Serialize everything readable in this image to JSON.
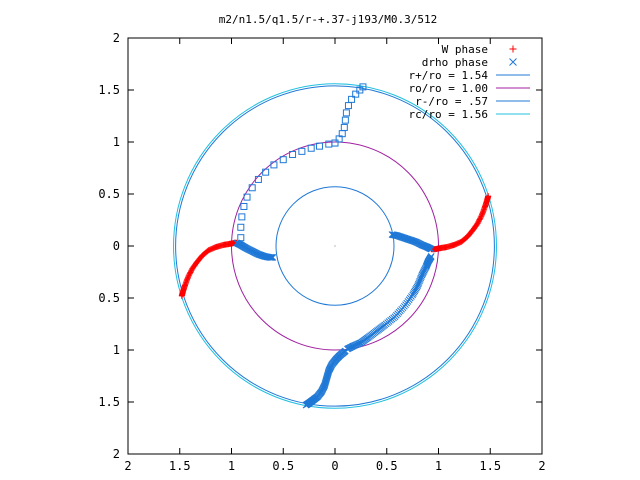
{
  "chart_data": {
    "type": "scatter",
    "title": "m2/n1.5/q1.5/r-+.37-j193/M0.3/512",
    "xlim": [
      -2,
      2
    ],
    "ylim": [
      -2,
      2
    ],
    "x_ticks": [
      -2,
      -1.5,
      -1,
      -0.5,
      0,
      0.5,
      1,
      1.5,
      2
    ],
    "y_ticks": [
      -2,
      -1.5,
      -1,
      -0.5,
      0,
      0.5,
      1,
      1.5,
      2
    ],
    "x_tick_labels": [
      "2",
      "1.5",
      "1",
      "0.5",
      "0",
      "0.5",
      "1",
      "1.5",
      "2"
    ],
    "y_tick_labels": [
      "2",
      "1.5",
      "1",
      "0.5",
      "0",
      "0.5",
      "1",
      "1.5",
      "2"
    ],
    "grid": false,
    "legend_position": "top-right",
    "series": [
      {
        "name": "W phase",
        "kind": "points",
        "marker": "plus",
        "color": "#ff0000",
        "segments": [
          {
            "x": [
              -1.48,
              -1.47,
              -1.45,
              -1.42,
              -1.38,
              -1.33,
              -1.28,
              -1.22,
              -1.15,
              -1.08,
              -1.02,
              -0.97,
              -0.95
            ],
            "y": [
              -0.48,
              -0.44,
              -0.38,
              -0.3,
              -0.22,
              -0.15,
              -0.09,
              -0.04,
              -0.01,
              0.01,
              0.02,
              0.03,
              0.03
            ]
          },
          {
            "x": [
              0.93,
              0.97,
              1.02,
              1.08,
              1.15,
              1.22,
              1.28,
              1.33,
              1.38,
              1.42,
              1.45,
              1.47,
              1.48
            ],
            "y": [
              -0.03,
              -0.03,
              -0.02,
              -0.01,
              0.01,
              0.04,
              0.09,
              0.15,
              0.22,
              0.3,
              0.38,
              0.44,
              0.48
            ]
          }
        ]
      },
      {
        "name": "drho phase",
        "kind": "points",
        "marker": "x",
        "color": "#1f78d6",
        "segments": [
          {
            "x": [
              -0.95,
              -0.91,
              -0.86,
              -0.8,
              -0.74,
              -0.68,
              -0.63,
              -0.6
            ],
            "y": [
              0.03,
              0.01,
              -0.02,
              -0.05,
              -0.08,
              -0.1,
              -0.11,
              -0.11
            ]
          },
          {
            "x": [
              0.55,
              0.6,
              0.66,
              0.72,
              0.78,
              0.84,
              0.89,
              0.93
            ],
            "y": [
              0.11,
              0.1,
              0.08,
              0.06,
              0.04,
              0.01,
              -0.01,
              -0.03
            ]
          },
          {
            "x": [
              0.93,
              0.9,
              0.88,
              0.84,
              0.8,
              0.75,
              0.67,
              0.58,
              0.48,
              0.4,
              0.32,
              0.25,
              0.18,
              0.12
            ],
            "y": [
              -0.1,
              -0.15,
              -0.2,
              -0.28,
              -0.38,
              -0.47,
              -0.58,
              -0.68,
              -0.76,
              -0.82,
              -0.88,
              -0.93,
              -0.96,
              -0.99
            ]
          },
          {
            "x": [
              0.1,
              0.05,
              0.01,
              -0.03,
              -0.06,
              -0.08,
              -0.1,
              -0.13,
              -0.17,
              -0.21,
              -0.25,
              -0.28
            ],
            "y": [
              -1.01,
              -1.05,
              -1.09,
              -1.14,
              -1.2,
              -1.27,
              -1.34,
              -1.4,
              -1.45,
              -1.48,
              -1.51,
              -1.53
            ]
          }
        ]
      },
      {
        "name": "drho phase",
        "kind": "points",
        "marker": "square",
        "color": "#1f78d6",
        "show_in_legend": false,
        "segments": [
          {
            "x": [
              -0.91,
              -0.91,
              -0.9,
              -0.88,
              -0.85,
              -0.8,
              -0.74,
              -0.67,
              -0.59,
              -0.5,
              -0.41,
              -0.32,
              -0.23,
              -0.15,
              -0.06,
              0.0
            ],
            "y": [
              0.08,
              0.18,
              0.28,
              0.38,
              0.47,
              0.56,
              0.64,
              0.71,
              0.78,
              0.83,
              0.88,
              0.91,
              0.94,
              0.96,
              0.98,
              0.99
            ]
          },
          {
            "x": [
              0.0,
              0.04,
              0.07,
              0.09,
              0.1,
              0.11,
              0.13,
              0.16,
              0.2,
              0.24,
              0.27
            ],
            "y": [
              0.99,
              1.03,
              1.08,
              1.14,
              1.21,
              1.28,
              1.35,
              1.41,
              1.46,
              1.5,
              1.53
            ]
          }
        ]
      },
      {
        "name": "r+/ro = 1.54",
        "kind": "circle",
        "radius": 1.54,
        "color": "#1f78d6"
      },
      {
        "name": "ro/ro = 1.00",
        "kind": "circle",
        "radius": 1.0,
        "color": "#a020a0"
      },
      {
        "name": "r-/ro = .57",
        "kind": "circle",
        "radius": 0.57,
        "color": "#1f78d6"
      },
      {
        "name": "rc/ro = 1.56",
        "kind": "circle",
        "radius": 1.56,
        "color": "#20c0e0"
      }
    ]
  }
}
